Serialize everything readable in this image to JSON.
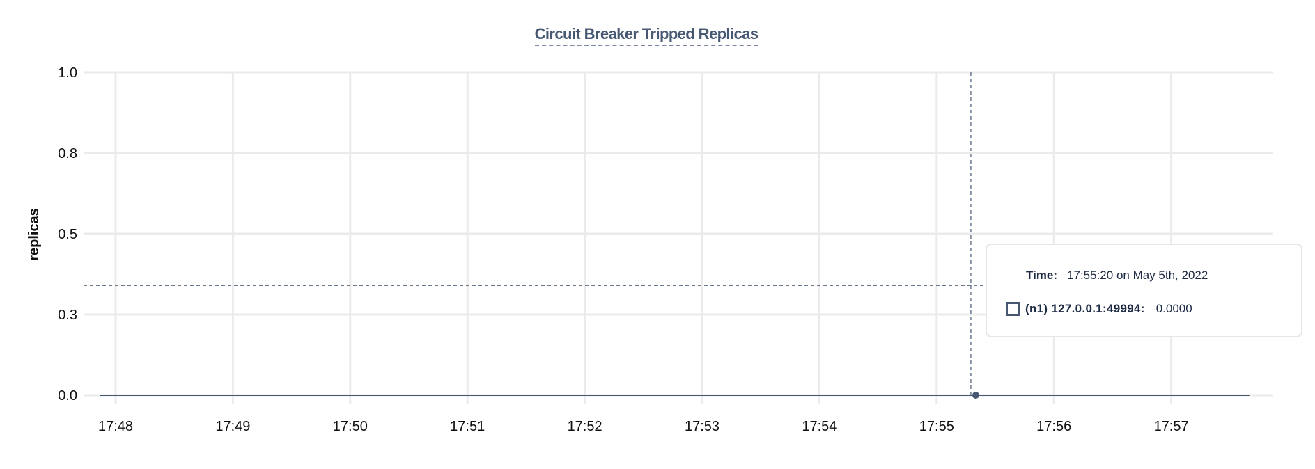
{
  "chart_data": {
    "type": "line",
    "title": "Circuit Breaker Tripped Replicas",
    "xlabel": "",
    "ylabel": "replicas",
    "x_tick_labels": [
      "17:48",
      "17:49",
      "17:50",
      "17:51",
      "17:52",
      "17:53",
      "17:54",
      "17:55",
      "17:56",
      "17:57"
    ],
    "y_ticks": [
      0,
      0.25,
      0.5,
      0.75,
      1.0
    ],
    "y_tick_labels": [
      "0.0",
      "0.3",
      "0.5",
      "0.8",
      "1.0"
    ],
    "ylim": [
      0,
      1
    ],
    "xlim": [
      "17:47:45",
      "17:58:00"
    ],
    "grid": true,
    "series": [
      {
        "name": "(n1) 127.0.0.1:49994",
        "color": "#475872",
        "x": [
          "17:47:52",
          "17:57:40"
        ],
        "y": [
          0,
          0
        ]
      }
    ],
    "hover": {
      "time": "17:55:20",
      "value": 0,
      "cursor_y": 0.34
    }
  },
  "tooltip": {
    "time_label": "Time:",
    "time_value": "17:55:20 on May 5th, 2022",
    "series_label": "(n1) 127.0.0.1:49994:",
    "series_value": "0.0000"
  }
}
